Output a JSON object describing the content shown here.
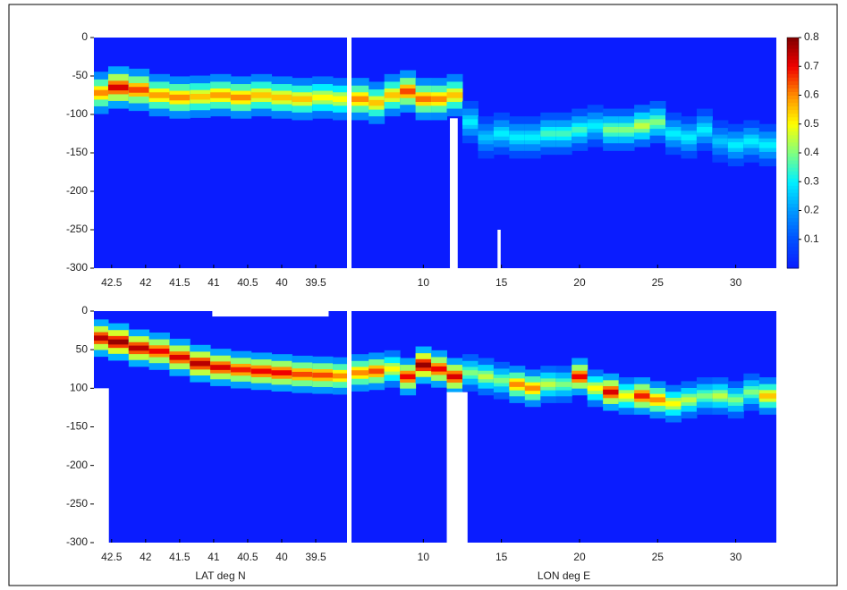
{
  "chart_data": [
    {
      "type": "heatmap",
      "ylim": [
        -300,
        0
      ],
      "yticks": [
        0,
        -50,
        -100,
        -150,
        -200,
        -250,
        -300
      ],
      "colorbar": {
        "clim": [
          0,
          0.8
        ],
        "ticks": [
          0.1,
          0.2,
          0.3,
          0.4,
          0.5,
          0.6,
          0.7,
          0.8
        ],
        "colors": [
          "#0a1cff",
          "#0050ff",
          "#0098ff",
          "#00f0ff",
          "#80ff80",
          "#ffff00",
          "#ff8c00",
          "#f00000",
          "#800000"
        ]
      },
      "sections": [
        {
          "xlim": [
            42.76,
            39.04
          ],
          "xticks": [
            42.5,
            42,
            41.5,
            41,
            40.5,
            40,
            39.5
          ],
          "thickness": 25,
          "x": [
            42.7,
            42.4,
            42.1,
            41.8,
            41.5,
            41.2,
            40.9,
            40.6,
            40.3,
            40.0,
            39.7,
            39.4,
            39.1
          ],
          "depth": [
            -72,
            -65,
            -68,
            -75,
            -78,
            -77,
            -75,
            -78,
            -75,
            -78,
            -80,
            -78,
            -80
          ],
          "values": [
            0.6,
            0.72,
            0.65,
            0.58,
            0.6,
            0.55,
            0.58,
            0.6,
            0.55,
            0.55,
            0.55,
            0.5,
            0.5
          ],
          "gaps": []
        },
        {
          "xlim": [
            5.4,
            32.6
          ],
          "xticks": [
            10,
            15,
            20,
            25,
            30
          ],
          "thickness": 25,
          "x": [
            6,
            7,
            8,
            9,
            10,
            11,
            12,
            13,
            14,
            15,
            16,
            17,
            18,
            19,
            20,
            21,
            22,
            23,
            24,
            25,
            26,
            27,
            28,
            29,
            30,
            31,
            32
          ],
          "depth": [
            -80,
            -85,
            -75,
            -70,
            -80,
            -80,
            -75,
            -110,
            -130,
            -125,
            -130,
            -130,
            -125,
            -125,
            -120,
            -115,
            -120,
            -120,
            -115,
            -110,
            -125,
            -130,
            -120,
            -135,
            -140,
            -135,
            -140
          ],
          "values": [
            0.6,
            0.55,
            0.55,
            0.65,
            0.62,
            0.6,
            0.55,
            0.3,
            0.25,
            0.3,
            0.3,
            0.3,
            0.35,
            0.35,
            0.35,
            0.3,
            0.4,
            0.4,
            0.45,
            0.4,
            0.3,
            0.3,
            0.3,
            0.25,
            0.3,
            0.3,
            0.3
          ],
          "gaps": [
            {
              "x": [
                11.7,
                12.2
              ],
              "y": [
                -300,
                -105
              ]
            },
            {
              "x": [
                14.75,
                14.95
              ],
              "y": [
                -300,
                -250
              ]
            }
          ]
        }
      ]
    },
    {
      "type": "heatmap",
      "ylim": [
        -300,
        0
      ],
      "yticks": [
        0,
        {
          "value": -50,
          "label": "50"
        },
        {
          "value": -100,
          "label": "100"
        },
        -150,
        -200,
        -250,
        -300
      ],
      "sections": [
        {
          "xlim": [
            42.76,
            39.04
          ],
          "xticks": [
            42.5,
            42,
            41.5,
            41,
            40.5,
            40,
            39.5
          ],
          "xlabel": "LAT deg N",
          "thickness": 22,
          "x": [
            42.7,
            42.4,
            42.1,
            41.8,
            41.5,
            41.2,
            40.9,
            40.6,
            40.3,
            40.0,
            39.7,
            39.4,
            39.1
          ],
          "depth": [
            -35,
            -40,
            -48,
            -52,
            -60,
            -68,
            -73,
            -76,
            -78,
            -80,
            -82,
            -83,
            -84
          ],
          "values": [
            0.75,
            0.78,
            0.75,
            0.7,
            0.72,
            0.75,
            0.72,
            0.68,
            0.7,
            0.7,
            0.65,
            0.65,
            0.6
          ],
          "gaps": [
            {
              "x": [
                42.76,
                42.54
              ],
              "y": [
                -300,
                -100
              ]
            },
            {
              "x": [
                41.02,
                39.31
              ],
              "y": [
                -7,
                0
              ]
            }
          ]
        },
        {
          "xlim": [
            5.4,
            32.6
          ],
          "xticks": [
            10,
            15,
            20,
            25,
            30
          ],
          "xlabel": "LON deg E",
          "thickness": 22,
          "x": [
            6,
            7,
            8,
            9,
            10,
            11,
            12,
            13,
            14,
            15,
            16,
            17,
            18,
            19,
            20,
            21,
            22,
            23,
            24,
            25,
            26,
            27,
            28,
            29,
            30,
            31,
            32
          ],
          "depth": [
            -80,
            -78,
            -75,
            -85,
            -70,
            -75,
            -85,
            -80,
            -85,
            -90,
            -95,
            -100,
            -95,
            -95,
            -85,
            -100,
            -105,
            -110,
            -110,
            -115,
            -120,
            -115,
            -110,
            -110,
            -115,
            -105,
            -110
          ],
          "values": [
            0.6,
            0.65,
            0.5,
            0.7,
            0.78,
            0.7,
            0.72,
            0.4,
            0.45,
            0.4,
            0.6,
            0.6,
            0.45,
            0.4,
            0.7,
            0.5,
            0.72,
            0.5,
            0.68,
            0.6,
            0.5,
            0.45,
            0.4,
            0.45,
            0.4,
            0.4,
            0.55
          ],
          "gaps": [
            {
              "x": [
                11.5,
                12.83
              ],
              "y": [
                -300,
                -105
              ]
            }
          ]
        }
      ]
    }
  ]
}
